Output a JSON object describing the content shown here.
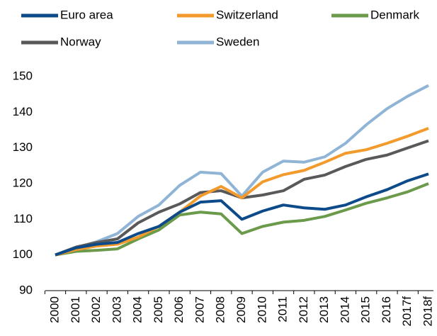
{
  "chart_data": {
    "type": "line",
    "categories": [
      "2000",
      "2001",
      "2002",
      "2003",
      "2004",
      "2005",
      "2006",
      "2007",
      "2008",
      "2009",
      "2010",
      "2011",
      "2012",
      "2013",
      "2014",
      "2015",
      "2016",
      "2017f",
      "2018f"
    ],
    "series": [
      {
        "name": "Euro area",
        "color": "#0d4a8a",
        "values": [
          100,
          102,
          103,
          103.5,
          106,
          108,
          112,
          114.8,
          115.2,
          110,
          112.3,
          114,
          113.2,
          112.8,
          114,
          116.3,
          118.3,
          120.8,
          122.7
        ]
      },
      {
        "name": "Switzerland",
        "color": "#f39a2c",
        "values": [
          100,
          101.5,
          102.5,
          103,
          105,
          108,
          112,
          116.5,
          119.2,
          116,
          120.5,
          122.5,
          123.7,
          126,
          128.5,
          129.5,
          131.3,
          133.3,
          135.5
        ]
      },
      {
        "name": "Denmark",
        "color": "#6a9a4a",
        "values": [
          100,
          101,
          101.3,
          101.7,
          104.5,
          107,
          111.2,
          112,
          111.5,
          106,
          108,
          109.2,
          109.7,
          110.8,
          112.6,
          114.5,
          116,
          117.7,
          120
        ]
      },
      {
        "name": "Norway",
        "color": "#595959",
        "values": [
          100,
          102.2,
          103.5,
          104.5,
          109,
          112,
          114.3,
          117.5,
          118,
          116,
          116.8,
          118,
          121.2,
          122.4,
          124.8,
          126.8,
          128,
          130,
          132
        ]
      },
      {
        "name": "Sweden",
        "color": "#8fb4d6",
        "values": [
          100,
          102,
          103.7,
          106,
          110.8,
          114,
          119.5,
          123.2,
          122.8,
          116.5,
          123.2,
          126.3,
          126,
          127.5,
          131.3,
          136.5,
          141,
          144.5,
          147.5
        ]
      }
    ],
    "ylim": [
      90,
      150
    ],
    "yticks": [
      90,
      100,
      110,
      120,
      130,
      140,
      150
    ],
    "grid": false
  }
}
